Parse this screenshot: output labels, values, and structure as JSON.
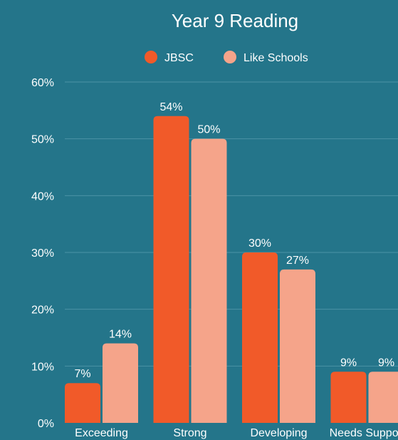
{
  "chart_data": {
    "type": "bar",
    "title": "Year 9 Reading",
    "categories": [
      "Exceeding",
      "Strong",
      "Developing",
      "Needs Support"
    ],
    "series": [
      {
        "name": "JBSC",
        "values": [
          7,
          54,
          30,
          9
        ],
        "labels": [
          "7%",
          "54%",
          "30%",
          "9%"
        ],
        "color": "#f15a29"
      },
      {
        "name": "Like Schools",
        "values": [
          14,
          50,
          27,
          9
        ],
        "labels": [
          "14%",
          "50%",
          "27%",
          "9%"
        ],
        "color": "#f5a48a"
      }
    ],
    "y_ticks": [
      "0%",
      "10%",
      "20%",
      "30%",
      "40%",
      "50%",
      "60%"
    ],
    "ylim": [
      0,
      60
    ],
    "grid": true,
    "legend_position": "top-center",
    "colors": {
      "background": "#24758a",
      "grid": "#4b93a5",
      "text": "#ffffff"
    }
  }
}
